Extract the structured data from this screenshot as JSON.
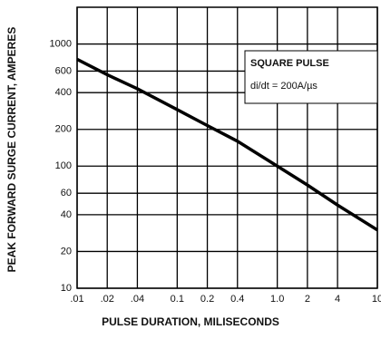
{
  "chart_data": {
    "type": "line",
    "x_label": "PULSE DURATION, MILISECONDS",
    "y_label": "PEAK FORWARD SURGE CURRENT, AMPERES",
    "annotations": [
      "SQUARE PULSE",
      "di/dt = 200A/µs"
    ],
    "x": [
      0.01,
      0.02,
      0.04,
      0.1,
      0.2,
      0.4,
      1,
      2,
      4,
      10
    ],
    "series": [
      {
        "color": "#000000",
        "values": [
          750,
          560,
          430,
          290,
          215,
          160,
          100,
          70,
          48,
          30
        ]
      }
    ],
    "log_x": true,
    "log_y": true,
    "grid": true,
    "xlim": [
      0.01,
      10
    ],
    "ylim": [
      10,
      2000
    ],
    "xticks": [
      {
        "value": 0.01,
        "label": ".01"
      },
      {
        "value": 0.02,
        "label": ".02"
      },
      {
        "value": 0.04,
        "label": ".04"
      },
      {
        "value": 0.1,
        "label": "0.1"
      },
      {
        "value": 0.2,
        "label": "0.2"
      },
      {
        "value": 0.4,
        "label": "0.4"
      },
      {
        "value": 1,
        "label": "1.0"
      },
      2,
      4,
      10
    ],
    "yticks": [
      10,
      20,
      40,
      60,
      100,
      200,
      400,
      600,
      1000
    ]
  }
}
